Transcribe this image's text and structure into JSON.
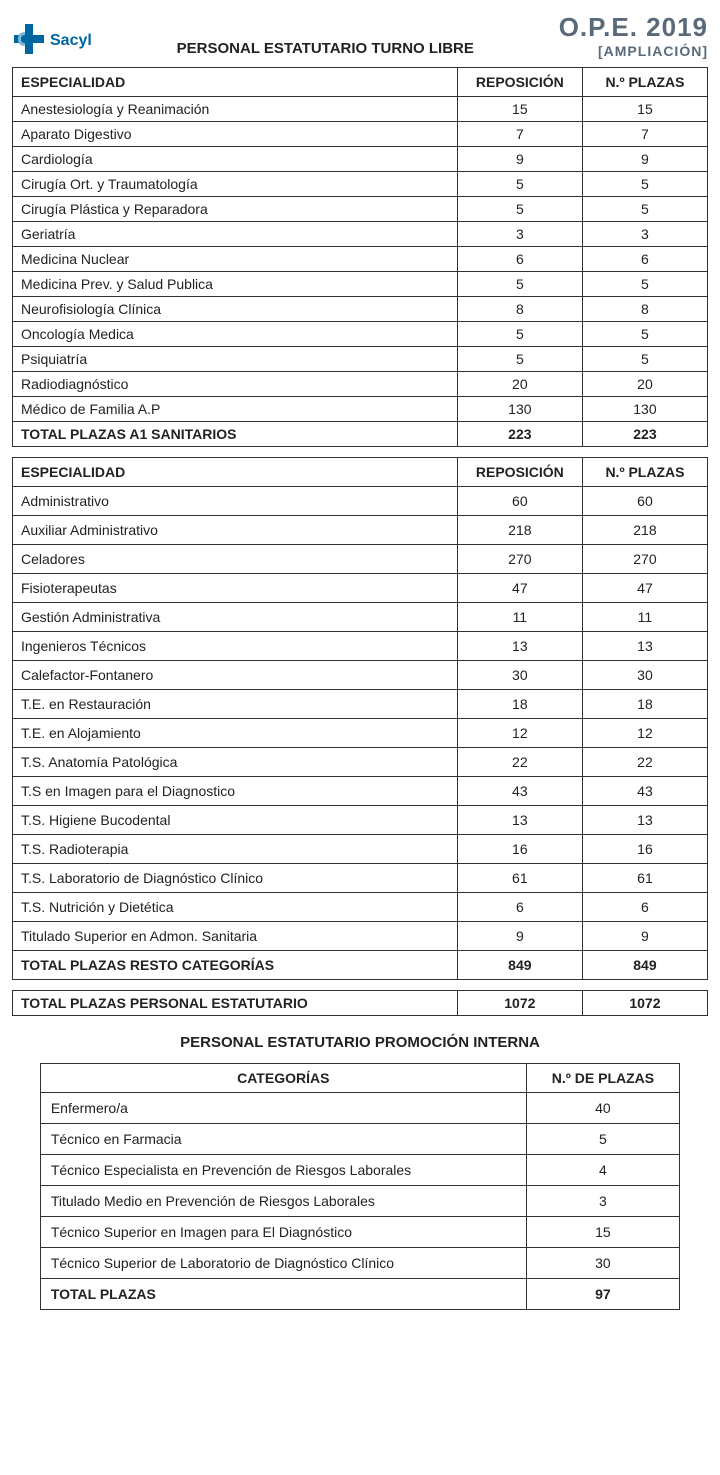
{
  "header": {
    "logo_text": "Sacyl",
    "main_title": "PERSONAL ESTATUTARIO TURNO LIBRE",
    "ope": "O.P.E. 2019",
    "ampliacion": "[AMPLIACIÓN]"
  },
  "table1": {
    "type": "table",
    "columns": [
      "ESPECIALIDAD",
      "REPOSICIÓN",
      "N.º PLAZAS"
    ],
    "rows": [
      [
        "Anestesiología y Reanimación",
        "15",
        "15"
      ],
      [
        "Aparato Digestivo",
        "7",
        "7"
      ],
      [
        "Cardiología",
        "9",
        "9"
      ],
      [
        "Cirugía Ort. y Traumatología",
        "5",
        "5"
      ],
      [
        "Cirugía Plástica y Reparadora",
        "5",
        "5"
      ],
      [
        "Geriatría",
        "3",
        "3"
      ],
      [
        "Medicina Nuclear",
        "6",
        "6"
      ],
      [
        "Medicina Prev. y Salud Publica",
        "5",
        "5"
      ],
      [
        "Neurofisiología Clínica",
        "8",
        "8"
      ],
      [
        "Oncología Medica",
        "5",
        "5"
      ],
      [
        "Psiquiatría",
        "5",
        "5"
      ],
      [
        "Radiodiagnóstico",
        "20",
        "20"
      ],
      [
        "Médico de Familia A.P",
        "130",
        "130"
      ]
    ],
    "total": [
      "TOTAL PLAZAS A1 SANITARIOS",
      "223",
      "223"
    ]
  },
  "table2": {
    "type": "table",
    "columns": [
      "ESPECIALIDAD",
      "REPOSICIÓN",
      "N.º PLAZAS"
    ],
    "rows": [
      [
        "Administrativo",
        "60",
        "60"
      ],
      [
        "Auxiliar Administrativo",
        "218",
        "218"
      ],
      [
        "Celadores",
        "270",
        "270"
      ],
      [
        "Fisioterapeutas",
        "47",
        "47"
      ],
      [
        "Gestión Administrativa",
        "11",
        "11"
      ],
      [
        "Ingenieros Técnicos",
        "13",
        "13"
      ],
      [
        "Calefactor-Fontanero",
        "30",
        "30"
      ],
      [
        "T.E. en Restauración",
        "18",
        "18"
      ],
      [
        "T.E. en Alojamiento",
        "12",
        "12"
      ],
      [
        "T.S. Anatomía Patológica",
        "22",
        "22"
      ],
      [
        "T.S en Imagen para el Diagnostico",
        "43",
        "43"
      ],
      [
        "T.S. Higiene Bucodental",
        "13",
        "13"
      ],
      [
        "T.S. Radioterapia",
        "16",
        "16"
      ],
      [
        "T.S. Laboratorio de Diagnóstico Clínico",
        "61",
        "61"
      ],
      [
        "T.S. Nutrición y Dietética",
        "6",
        "6"
      ],
      [
        "Titulado Superior en Admon. Sanitaria",
        "9",
        "9"
      ]
    ],
    "total": [
      "TOTAL PLAZAS RESTO CATEGORÍAS",
      "849",
      "849"
    ]
  },
  "grand_total": {
    "label": "TOTAL PLAZAS PERSONAL ESTATUTARIO",
    "reposicion": "1072",
    "plazas": "1072"
  },
  "section2_title": "PERSONAL ESTATUTARIO PROMOCIÓN INTERNA",
  "table3": {
    "type": "table",
    "columns": [
      "CATEGORÍAS",
      "N.º DE PLAZAS"
    ],
    "rows": [
      [
        "Enfermero/a",
        "40"
      ],
      [
        "Técnico en Farmacia",
        "5"
      ],
      [
        "Técnico Especialista en Prevención de Riesgos Laborales",
        "4"
      ],
      [
        "Titulado Medio en Prevención de Riesgos Laborales",
        "3"
      ],
      [
        "Técnico Superior en Imagen para El Diagnóstico",
        "15"
      ],
      [
        "Técnico Superior de Laboratorio de Diagnóstico Clínico",
        "30"
      ]
    ],
    "total": [
      "TOTAL PLAZAS",
      "97"
    ]
  },
  "colors": {
    "brand_blue": "#0066a0",
    "header_gray": "#5a6a7a",
    "border": "#333333",
    "background": "#ffffff",
    "text": "#222222"
  }
}
